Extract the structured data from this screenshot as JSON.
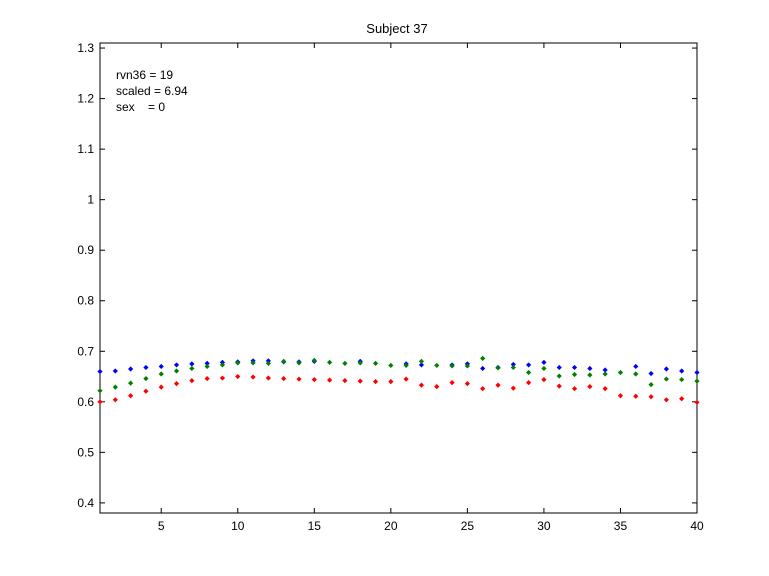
{
  "chart_data": {
    "type": "scatter",
    "title": "Subject 37",
    "xlabel": "",
    "ylabel": "",
    "xlim": [
      1,
      40
    ],
    "ylim": [
      0.38,
      1.31
    ],
    "xticks": [
      5,
      10,
      15,
      20,
      25,
      30,
      35,
      40
    ],
    "xtick_labels": [
      "5",
      "10",
      "15",
      "20",
      "25",
      "30",
      "35",
      "40"
    ],
    "yticks": [
      0.4,
      0.5,
      0.6,
      0.7,
      0.8,
      0.9,
      1.0,
      1.1,
      1.2,
      1.3
    ],
    "ytick_labels": [
      "0.4",
      "0.5",
      "0.6",
      "0.7",
      "0.8",
      "0.9",
      "1",
      "1.1",
      "1.2",
      "1.3"
    ],
    "grid": false,
    "annotations": [
      "rvn36 = 19",
      "scaled = 6.94",
      "sex    = 0"
    ],
    "x": [
      1,
      2,
      3,
      4,
      5,
      6,
      7,
      8,
      9,
      10,
      11,
      12,
      13,
      14,
      15,
      16,
      17,
      18,
      19,
      20,
      21,
      22,
      23,
      24,
      25,
      26,
      27,
      28,
      29,
      30,
      31,
      32,
      33,
      34,
      35,
      36,
      37,
      38,
      39,
      40
    ],
    "series": [
      {
        "color": "#0000ff",
        "values": [
          0.66,
          0.661,
          0.665,
          0.668,
          0.67,
          0.673,
          0.675,
          0.676,
          0.678,
          0.679,
          0.681,
          0.681,
          0.679,
          0.679,
          0.68,
          null,
          null,
          0.68,
          null,
          null,
          0.675,
          0.673,
          null,
          0.673,
          0.675,
          0.666,
          0.668,
          0.674,
          0.673,
          0.678,
          0.668,
          0.668,
          0.666,
          0.663,
          null,
          0.67,
          0.656,
          0.665,
          0.661,
          0.658
        ]
      },
      {
        "color": "#008000",
        "values": [
          0.622,
          0.629,
          0.637,
          0.646,
          0.655,
          0.661,
          0.666,
          0.67,
          0.673,
          0.677,
          0.677,
          0.676,
          0.68,
          0.677,
          0.682,
          0.678,
          0.676,
          0.677,
          0.676,
          0.672,
          0.672,
          0.68,
          0.672,
          0.671,
          0.671,
          0.686,
          0.667,
          0.668,
          0.658,
          0.666,
          0.651,
          0.654,
          0.653,
          0.655,
          0.658,
          0.655,
          0.634,
          0.645,
          0.644,
          0.641
        ]
      },
      {
        "color": "#ff0000",
        "values": [
          0.6,
          0.604,
          0.612,
          0.621,
          0.629,
          0.636,
          0.642,
          0.646,
          0.647,
          0.65,
          0.649,
          0.647,
          0.646,
          0.645,
          0.644,
          0.643,
          0.642,
          0.641,
          0.64,
          0.64,
          0.645,
          0.633,
          0.63,
          0.638,
          0.636,
          0.626,
          0.633,
          0.627,
          0.638,
          0.644,
          0.631,
          0.626,
          0.63,
          0.626,
          0.612,
          0.611,
          0.61,
          0.604,
          0.606,
          0.599
        ]
      }
    ]
  }
}
